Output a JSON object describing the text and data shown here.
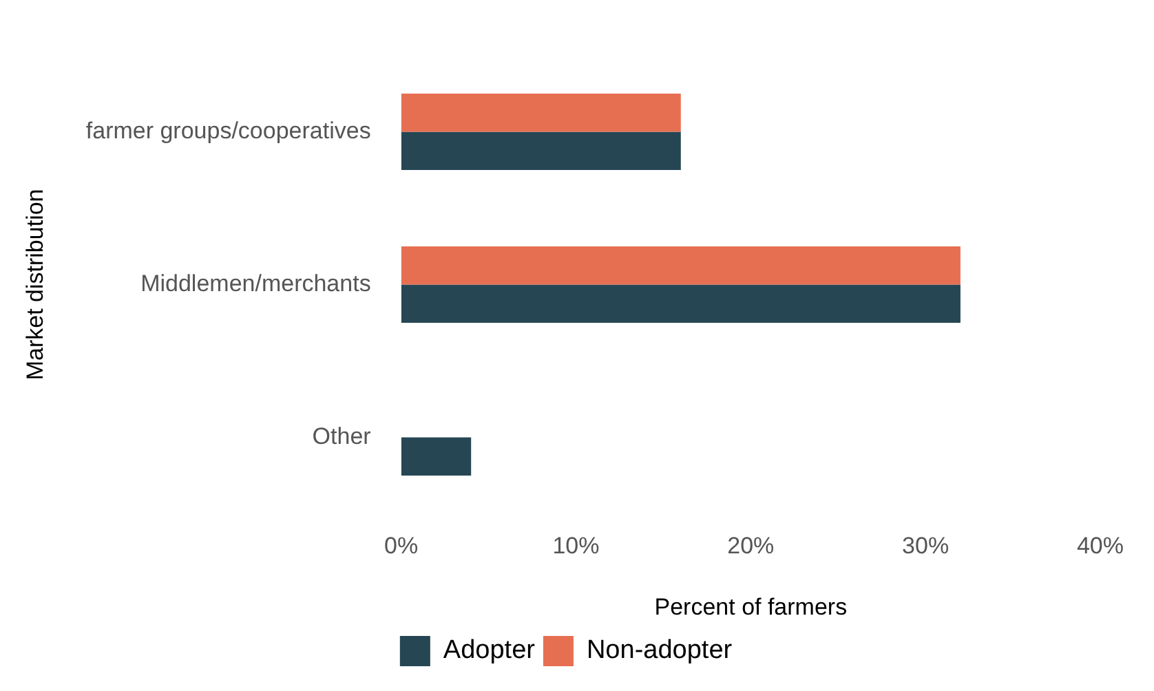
{
  "chart_data": {
    "type": "bar",
    "orientation": "horizontal",
    "xlabel": "Percent of farmers",
    "ylabel": "Market distribution",
    "categories": [
      "farmer groups/cooperatives",
      "Middlemen/merchants",
      "Other"
    ],
    "series": [
      {
        "name": "Adopter",
        "color": "#264653",
        "values": [
          16,
          32,
          4
        ]
      },
      {
        "name": "Non-adopter",
        "color": "#e76f51",
        "values": [
          16,
          32,
          null
        ]
      }
    ],
    "xlim": [
      0,
      40
    ],
    "xticks": [
      {
        "value": 0,
        "label": "0%"
      },
      {
        "value": 10,
        "label": "10%"
      },
      {
        "value": 20,
        "label": "20%"
      },
      {
        "value": 30,
        "label": "30%"
      },
      {
        "value": 40,
        "label": "40%"
      }
    ],
    "grid": false,
    "legend": "bottom"
  }
}
